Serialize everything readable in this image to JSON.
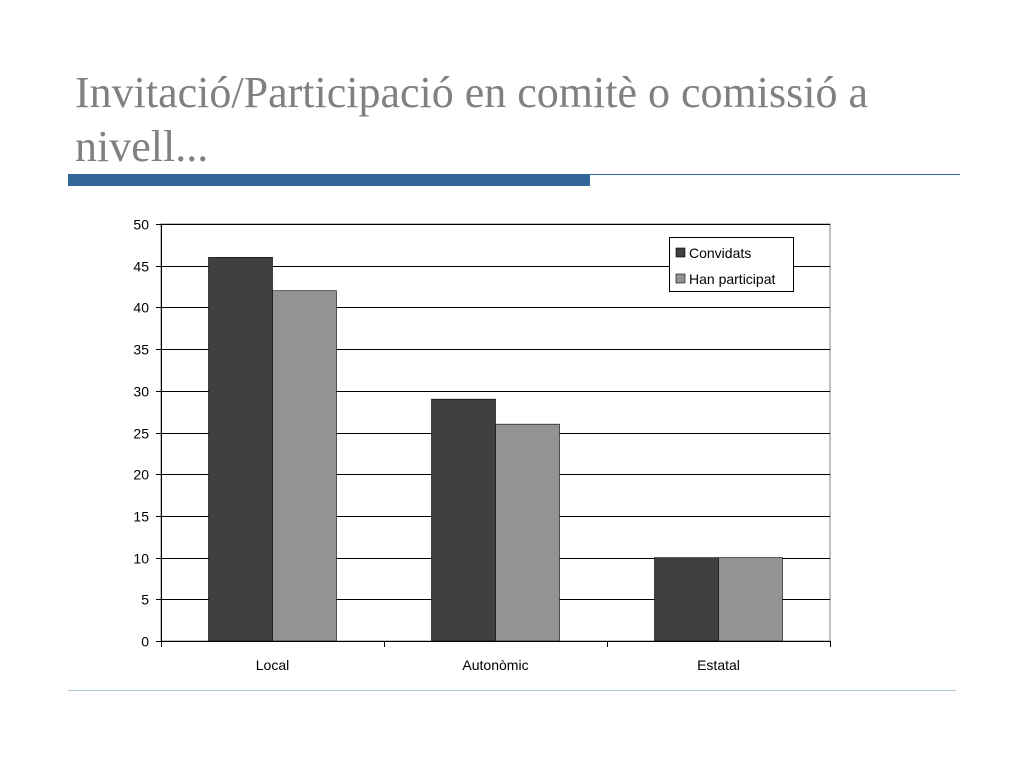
{
  "slide": {
    "title": "Invitació/Participació en comitè o comissió a nivell..."
  },
  "colors": {
    "accent": "#336699",
    "title_text": "#808080",
    "footer_line": "#a6c8d4"
  },
  "chart_data": {
    "type": "bar",
    "categories": [
      "Local",
      "Autonòmic",
      "Estatal"
    ],
    "series": [
      {
        "name": "Convidats",
        "values": [
          46,
          29,
          10
        ],
        "color": "#404040"
      },
      {
        "name": "Han participat",
        "values": [
          42,
          26,
          10
        ],
        "color": "#939393"
      }
    ],
    "ylim": [
      0,
      50
    ],
    "yticks": [
      "0",
      "5",
      "10",
      "15",
      "20",
      "25",
      "30",
      "35",
      "40",
      "45",
      "50"
    ],
    "grid": true,
    "legend_placement": "top-right"
  }
}
